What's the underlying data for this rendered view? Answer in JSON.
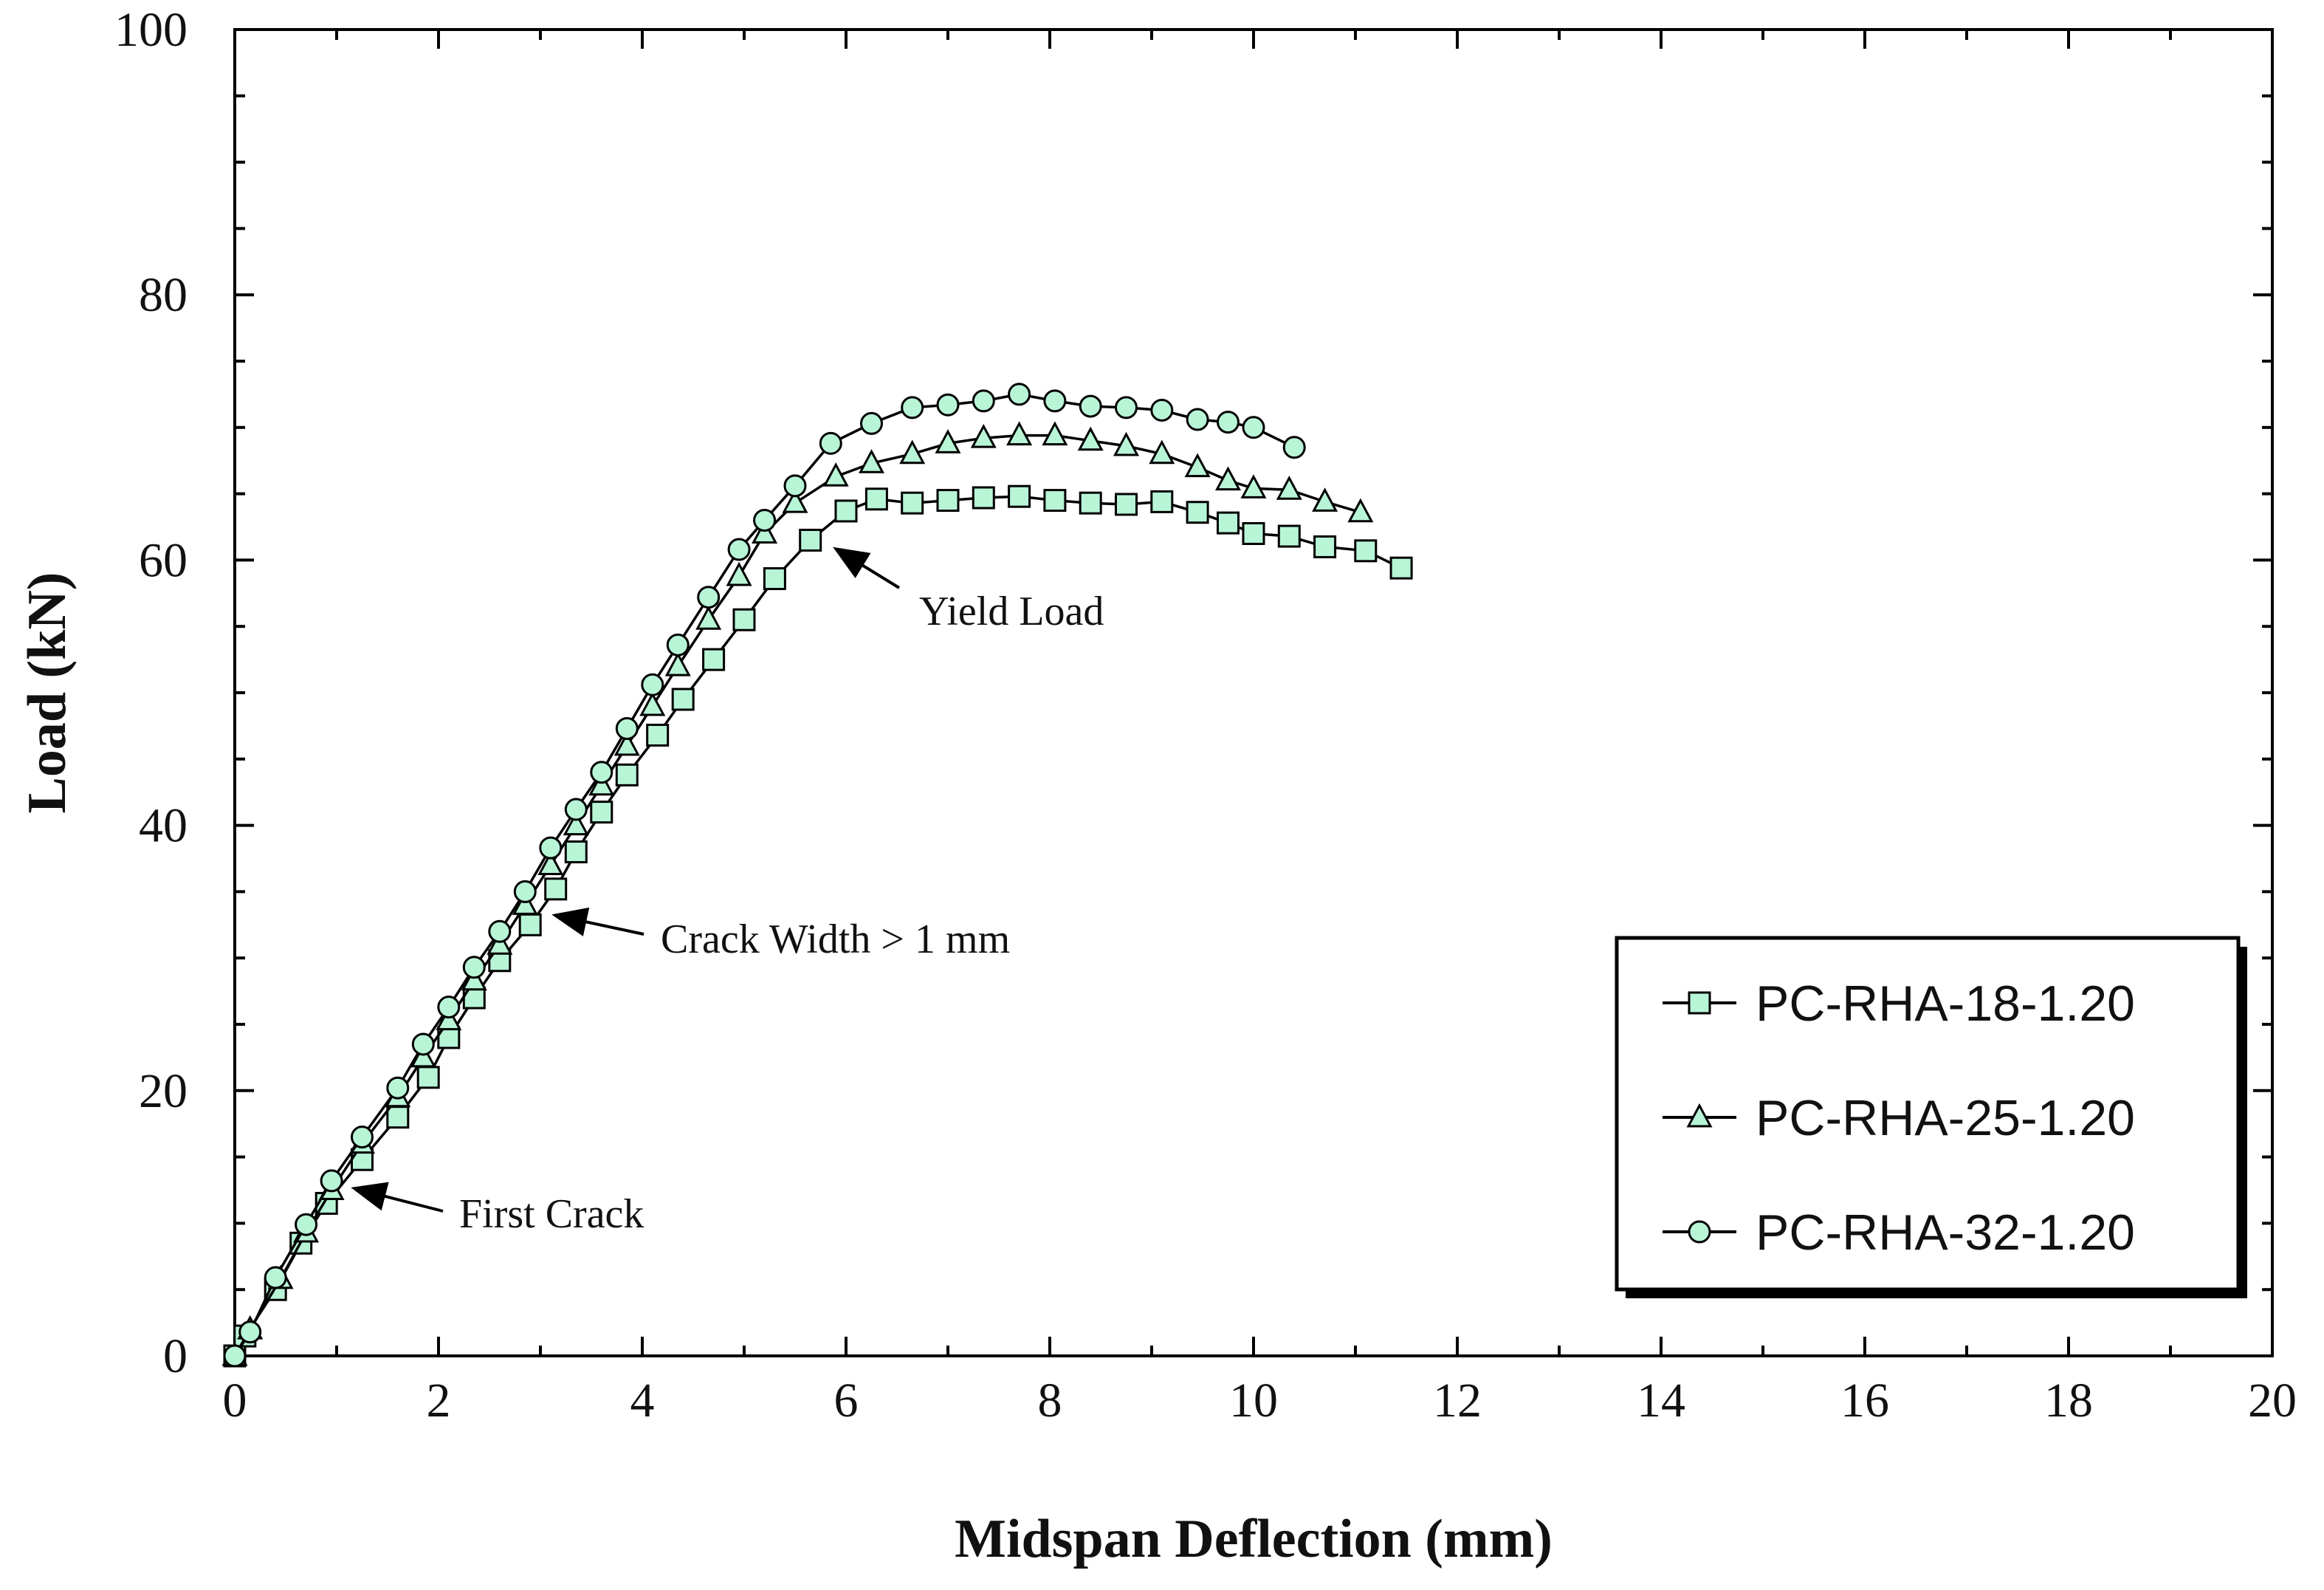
{
  "chart_data": {
    "type": "line",
    "title": "",
    "xlabel": "Midspan Deflection (mm)",
    "ylabel": "Load (kN)",
    "xlim": [
      0,
      20
    ],
    "ylim": [
      0,
      100
    ],
    "x_ticks": [
      "0",
      "2",
      "4",
      "6",
      "8",
      "10",
      "12",
      "14",
      "16",
      "18",
      "20"
    ],
    "y_ticks": [
      "0",
      "20",
      "40",
      "60",
      "80",
      "100"
    ],
    "grid": false,
    "legend_position": "bottom-right",
    "marker_fill": "#b8f5d6",
    "line_color": "#000000",
    "series": [
      {
        "name": "PC-RHA-18-1.20",
        "marker": "square",
        "points": [
          [
            0.0,
            0.0
          ],
          [
            0.1,
            1.5
          ],
          [
            0.4,
            5.0
          ],
          [
            0.65,
            8.5
          ],
          [
            0.9,
            11.5
          ],
          [
            1.25,
            14.8
          ],
          [
            1.6,
            18.0
          ],
          [
            1.9,
            21.0
          ],
          [
            2.1,
            24.0
          ],
          [
            2.35,
            27.0
          ],
          [
            2.6,
            29.8
          ],
          [
            2.9,
            32.5
          ],
          [
            3.15,
            35.2
          ],
          [
            3.35,
            38.0
          ],
          [
            3.6,
            41.0
          ],
          [
            3.85,
            43.8
          ],
          [
            4.15,
            46.8
          ],
          [
            4.4,
            49.5
          ],
          [
            4.7,
            52.5
          ],
          [
            5.0,
            55.5
          ],
          [
            5.3,
            58.6
          ],
          [
            5.65,
            61.5
          ],
          [
            6.0,
            63.7
          ],
          [
            6.3,
            64.6
          ],
          [
            6.65,
            64.3
          ],
          [
            7.0,
            64.5
          ],
          [
            7.35,
            64.7
          ],
          [
            7.7,
            64.8
          ],
          [
            8.05,
            64.5
          ],
          [
            8.4,
            64.3
          ],
          [
            8.75,
            64.2
          ],
          [
            9.1,
            64.4
          ],
          [
            9.45,
            63.6
          ],
          [
            9.75,
            62.8
          ],
          [
            10.0,
            62.0
          ],
          [
            10.35,
            61.8
          ],
          [
            10.7,
            61.0
          ],
          [
            11.1,
            60.7
          ],
          [
            11.45,
            59.4
          ]
        ]
      },
      {
        "name": "PC-RHA-25-1.20",
        "marker": "triangle",
        "points": [
          [
            0.0,
            0.0
          ],
          [
            0.15,
            2.0
          ],
          [
            0.45,
            5.8
          ],
          [
            0.7,
            9.3
          ],
          [
            0.95,
            12.5
          ],
          [
            1.25,
            16.0
          ],
          [
            1.6,
            19.5
          ],
          [
            1.85,
            22.5
          ],
          [
            2.1,
            25.3
          ],
          [
            2.35,
            28.3
          ],
          [
            2.6,
            31.0
          ],
          [
            2.85,
            34.0
          ],
          [
            3.1,
            37.0
          ],
          [
            3.35,
            40.0
          ],
          [
            3.6,
            43.0
          ],
          [
            3.85,
            46.0
          ],
          [
            4.1,
            49.0
          ],
          [
            4.35,
            52.0
          ],
          [
            4.65,
            55.5
          ],
          [
            4.95,
            58.8
          ],
          [
            5.2,
            62.0
          ],
          [
            5.5,
            64.3
          ],
          [
            5.9,
            66.3
          ],
          [
            6.25,
            67.3
          ],
          [
            6.65,
            68.0
          ],
          [
            7.0,
            68.8
          ],
          [
            7.35,
            69.2
          ],
          [
            7.7,
            69.4
          ],
          [
            8.05,
            69.4
          ],
          [
            8.4,
            69.0
          ],
          [
            8.75,
            68.6
          ],
          [
            9.1,
            68.0
          ],
          [
            9.45,
            67.0
          ],
          [
            9.75,
            66.0
          ],
          [
            10.0,
            65.4
          ],
          [
            10.35,
            65.3
          ],
          [
            10.7,
            64.4
          ],
          [
            11.05,
            63.6
          ]
        ]
      },
      {
        "name": "PC-RHA-32-1.20",
        "marker": "circle",
        "points": [
          [
            0.0,
            0.0
          ],
          [
            0.15,
            1.8
          ],
          [
            0.4,
            5.9
          ],
          [
            0.7,
            9.9
          ],
          [
            0.95,
            13.2
          ],
          [
            1.25,
            16.5
          ],
          [
            1.6,
            20.2
          ],
          [
            1.85,
            23.5
          ],
          [
            2.1,
            26.3
          ],
          [
            2.35,
            29.3
          ],
          [
            2.6,
            32.0
          ],
          [
            2.85,
            35.0
          ],
          [
            3.1,
            38.3
          ],
          [
            3.35,
            41.2
          ],
          [
            3.6,
            44.0
          ],
          [
            3.85,
            47.3
          ],
          [
            4.1,
            50.6
          ],
          [
            4.35,
            53.6
          ],
          [
            4.65,
            57.2
          ],
          [
            4.95,
            60.8
          ],
          [
            5.2,
            63.0
          ],
          [
            5.5,
            65.6
          ],
          [
            5.85,
            68.8
          ],
          [
            6.25,
            70.3
          ],
          [
            6.65,
            71.5
          ],
          [
            7.0,
            71.7
          ],
          [
            7.35,
            72.0
          ],
          [
            7.7,
            72.5
          ],
          [
            8.05,
            72.0
          ],
          [
            8.4,
            71.6
          ],
          [
            8.75,
            71.5
          ],
          [
            9.1,
            71.3
          ],
          [
            9.45,
            70.6
          ],
          [
            9.75,
            70.4
          ],
          [
            10.0,
            70.0
          ],
          [
            10.4,
            68.5
          ]
        ]
      }
    ],
    "annotations": [
      {
        "text": "First Crack",
        "points_to": [
          1.1,
          12.5
        ]
      },
      {
        "text": "Crack Width > 1 mm",
        "points_to": [
          3.15,
          33.5
        ]
      },
      {
        "text": "Yield Load",
        "points_to": [
          5.75,
          61.5
        ]
      }
    ]
  }
}
